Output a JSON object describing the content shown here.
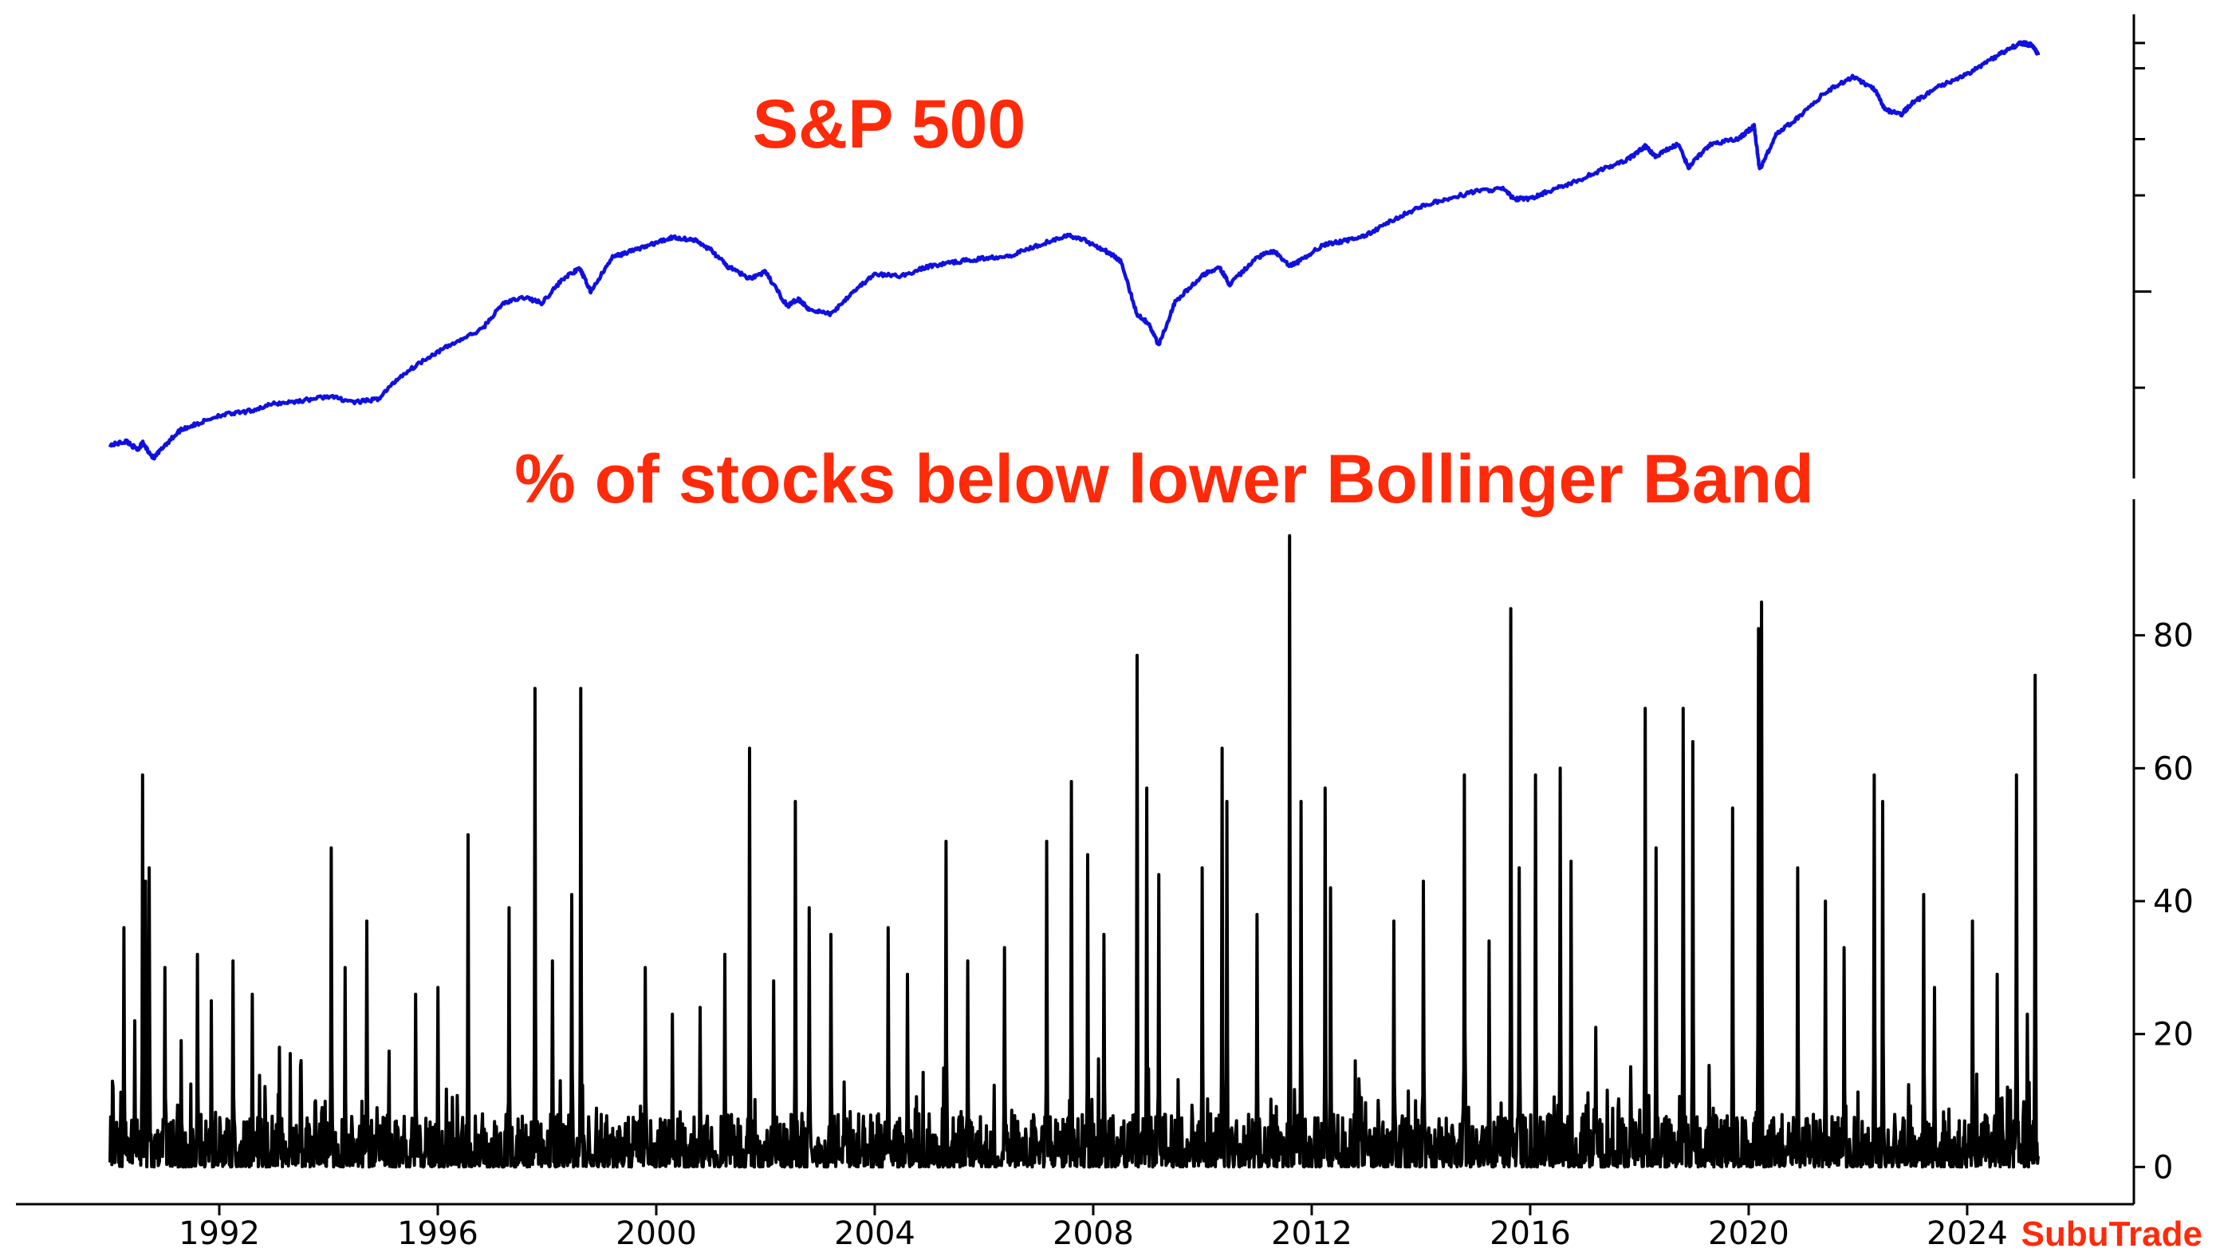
{
  "chart_data": [
    {
      "type": "line",
      "title": "S&P 500",
      "y_scale": "log",
      "y_ticks_labeled": false,
      "color": "#1010e0",
      "x_range": [
        1990.0,
        2025.3
      ],
      "series": [
        {
          "x": [
            1990.0,
            1990.3,
            1990.5,
            1990.6,
            1990.8,
            1991.0,
            1991.3,
            1991.6,
            1992.0,
            1992.5,
            1993.0,
            1993.5,
            1994.0,
            1994.5,
            1994.9,
            1995.3,
            1995.8,
            1996.3,
            1996.8,
            1997.2,
            1997.6,
            1997.9,
            1998.3,
            1998.6,
            1998.8,
            1999.2,
            1999.6,
            2000.0,
            2000.3,
            2000.7,
            2001.0,
            2001.3,
            2001.7,
            2002.0,
            2002.4,
            2002.6,
            2002.8,
            2003.2,
            2003.6,
            2004.0,
            2004.5,
            2005.0,
            2005.5,
            2006.0,
            2006.5,
            2007.0,
            2007.5,
            2007.8,
            2008.2,
            2008.5,
            2008.8,
            2009.0,
            2009.2,
            2009.5,
            2010.0,
            2010.3,
            2010.5,
            2011.0,
            2011.3,
            2011.6,
            2011.8,
            2012.2,
            2012.6,
            2013.0,
            2013.5,
            2014.0,
            2014.5,
            2015.0,
            2015.5,
            2015.7,
            2016.0,
            2016.3,
            2016.8,
            2017.3,
            2017.8,
            2018.1,
            2018.3,
            2018.7,
            2018.9,
            2019.3,
            2019.8,
            2020.1,
            2020.2,
            2020.5,
            2020.9,
            2021.4,
            2021.9,
            2022.3,
            2022.5,
            2022.8,
            2023.0,
            2023.5,
            2024.0,
            2024.5,
            2024.8,
            2025.0,
            2025.2,
            2025.3
          ],
          "values": [
            330,
            340,
            320,
            335,
            300,
            330,
            370,
            385,
            410,
            420,
            445,
            455,
            470,
            450,
            460,
            540,
            620,
            690,
            760,
            920,
            960,
            920,
            1100,
            1180,
            1000,
            1280,
            1350,
            1420,
            1480,
            1450,
            1350,
            1200,
            1100,
            1150,
            900,
            950,
            880,
            850,
            1000,
            1130,
            1120,
            1200,
            1240,
            1270,
            1300,
            1400,
            1500,
            1460,
            1350,
            1250,
            850,
            800,
            680,
            930,
            1120,
            1200,
            1050,
            1280,
            1340,
            1200,
            1250,
            1400,
            1440,
            1500,
            1680,
            1850,
            1950,
            2060,
            2100,
            1950,
            1950,
            2050,
            2200,
            2400,
            2600,
            2850,
            2650,
            2900,
            2450,
            2900,
            3000,
            3300,
            2400,
            3100,
            3500,
            4200,
            4700,
            4300,
            3700,
            3600,
            3900,
            4400,
            4800,
            5400,
            5800,
            6000,
            5900,
            5500
          ]
        }
      ]
    },
    {
      "type": "line",
      "title": "% of stocks below lower Bollinger Band",
      "color": "#000000",
      "x_range": [
        1990.0,
        2025.3
      ],
      "ylim": [
        -5,
        100
      ],
      "y_ticks": [
        0,
        20,
        40,
        60,
        80
      ],
      "x_ticks": [
        1992,
        1996,
        2000,
        2004,
        2008,
        2012,
        2016,
        2020,
        2024
      ],
      "baseline_noise_range": [
        0,
        8
      ],
      "spikes": [
        {
          "x": 1990.06,
          "value": 12
        },
        {
          "x": 1990.25,
          "value": 36
        },
        {
          "x": 1990.45,
          "value": 22
        },
        {
          "x": 1990.6,
          "value": 59
        },
        {
          "x": 1990.65,
          "value": 43
        },
        {
          "x": 1990.72,
          "value": 45
        },
        {
          "x": 1991.0,
          "value": 30
        },
        {
          "x": 1991.3,
          "value": 19
        },
        {
          "x": 1991.6,
          "value": 32
        },
        {
          "x": 1991.85,
          "value": 25
        },
        {
          "x": 1992.25,
          "value": 31
        },
        {
          "x": 1992.6,
          "value": 26
        },
        {
          "x": 1993.1,
          "value": 18
        },
        {
          "x": 1993.5,
          "value": 16
        },
        {
          "x": 1994.05,
          "value": 48
        },
        {
          "x": 1994.3,
          "value": 30
        },
        {
          "x": 1994.7,
          "value": 37
        },
        {
          "x": 1995.6,
          "value": 26
        },
        {
          "x": 1996.0,
          "value": 27
        },
        {
          "x": 1996.55,
          "value": 50
        },
        {
          "x": 1997.3,
          "value": 39
        },
        {
          "x": 1997.78,
          "value": 72
        },
        {
          "x": 1998.1,
          "value": 31
        },
        {
          "x": 1998.62,
          "value": 72
        },
        {
          "x": 1998.45,
          "value": 41
        },
        {
          "x": 1999.8,
          "value": 30
        },
        {
          "x": 2000.3,
          "value": 23
        },
        {
          "x": 2000.8,
          "value": 24
        },
        {
          "x": 2001.25,
          "value": 32
        },
        {
          "x": 2001.71,
          "value": 63
        },
        {
          "x": 2002.15,
          "value": 28
        },
        {
          "x": 2002.55,
          "value": 55
        },
        {
          "x": 2002.8,
          "value": 39
        },
        {
          "x": 2003.2,
          "value": 35
        },
        {
          "x": 2004.25,
          "value": 36
        },
        {
          "x": 2004.6,
          "value": 29
        },
        {
          "x": 2005.3,
          "value": 49
        },
        {
          "x": 2005.7,
          "value": 31
        },
        {
          "x": 2006.38,
          "value": 33
        },
        {
          "x": 2007.15,
          "value": 49
        },
        {
          "x": 2007.6,
          "value": 58
        },
        {
          "x": 2007.9,
          "value": 47
        },
        {
          "x": 2008.2,
          "value": 35
        },
        {
          "x": 2008.8,
          "value": 77
        },
        {
          "x": 2008.98,
          "value": 57
        },
        {
          "x": 2009.2,
          "value": 44
        },
        {
          "x": 2010.0,
          "value": 45
        },
        {
          "x": 2010.36,
          "value": 63
        },
        {
          "x": 2010.45,
          "value": 55
        },
        {
          "x": 2011.0,
          "value": 38
        },
        {
          "x": 2011.6,
          "value": 95
        },
        {
          "x": 2011.8,
          "value": 55
        },
        {
          "x": 2012.25,
          "value": 57
        },
        {
          "x": 2012.35,
          "value": 42
        },
        {
          "x": 2013.5,
          "value": 37
        },
        {
          "x": 2014.05,
          "value": 43
        },
        {
          "x": 2014.8,
          "value": 59
        },
        {
          "x": 2015.25,
          "value": 34
        },
        {
          "x": 2015.65,
          "value": 84
        },
        {
          "x": 2015.8,
          "value": 45
        },
        {
          "x": 2016.1,
          "value": 59
        },
        {
          "x": 2016.55,
          "value": 60
        },
        {
          "x": 2016.75,
          "value": 46
        },
        {
          "x": 2017.2,
          "value": 21
        },
        {
          "x": 2018.1,
          "value": 69
        },
        {
          "x": 2018.3,
          "value": 48
        },
        {
          "x": 2018.8,
          "value": 69
        },
        {
          "x": 2018.98,
          "value": 64
        },
        {
          "x": 2019.7,
          "value": 54
        },
        {
          "x": 2020.18,
          "value": 81
        },
        {
          "x": 2020.23,
          "value": 85
        },
        {
          "x": 2020.9,
          "value": 45
        },
        {
          "x": 2021.4,
          "value": 40
        },
        {
          "x": 2021.75,
          "value": 33
        },
        {
          "x": 2022.3,
          "value": 59
        },
        {
          "x": 2022.45,
          "value": 55
        },
        {
          "x": 2023.2,
          "value": 41
        },
        {
          "x": 2023.4,
          "value": 27
        },
        {
          "x": 2024.1,
          "value": 37
        },
        {
          "x": 2024.55,
          "value": 29
        },
        {
          "x": 2024.9,
          "value": 59
        },
        {
          "x": 2025.1,
          "value": 23
        },
        {
          "x": 2025.25,
          "value": 74
        }
      ]
    }
  ],
  "watermark": "SubuTrade"
}
